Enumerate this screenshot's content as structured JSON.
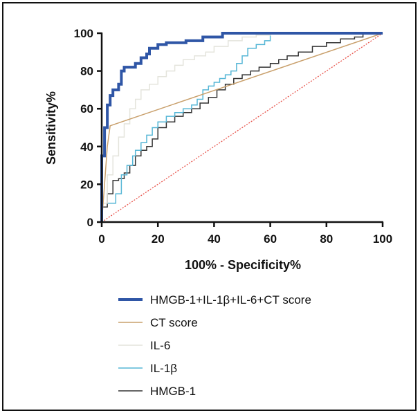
{
  "chart_data": {
    "type": "line",
    "title": "",
    "xlabel": "100% - Specificity%",
    "ylabel": "Sensitivity%",
    "xlim": [
      0,
      100
    ],
    "ylim": [
      0,
      100
    ],
    "xticks": [
      "0",
      "20",
      "40",
      "60",
      "80",
      "100"
    ],
    "yticks": [
      "0",
      "20",
      "40",
      "60",
      "80",
      "100"
    ],
    "grid": false,
    "legend_position": "bottom",
    "reference_line": {
      "x": [
        0,
        100
      ],
      "y": [
        0,
        100
      ],
      "color": "#e8534b",
      "style": "dotted"
    },
    "series": [
      {
        "name": "HMGB-1+IL-1β+IL-6+CT score",
        "color": "#2f56a6",
        "x": [
          0,
          0,
          1,
          1,
          2,
          2,
          3,
          3,
          4,
          4,
          5,
          6,
          7,
          7,
          8,
          9,
          10,
          12,
          14,
          15,
          16,
          17,
          17,
          20,
          23,
          27,
          30,
          36,
          38,
          43,
          54,
          60,
          80,
          100
        ],
        "y": [
          0,
          28,
          35,
          46,
          50,
          61,
          62,
          66,
          67,
          70,
          70,
          70,
          73,
          76,
          80,
          82,
          82,
          82,
          84,
          87,
          87,
          89,
          92,
          92,
          94,
          95,
          95,
          96,
          98,
          98,
          100,
          100,
          100,
          100
        ]
      },
      {
        "name": "CT score",
        "color": "#c9a06c",
        "x": [
          0,
          1,
          2,
          3,
          100
        ],
        "y": [
          0,
          20,
          40,
          51,
          100
        ]
      },
      {
        "name": "IL-6",
        "color": "#e4e4dc",
        "x": [
          0,
          2,
          4,
          6,
          8,
          10,
          12,
          14,
          17,
          20,
          23,
          26,
          29,
          33,
          37,
          40,
          45,
          50,
          55,
          60,
          63,
          100
        ],
        "y": [
          0,
          10,
          25,
          35,
          45,
          52,
          60,
          65,
          70,
          73,
          77,
          80,
          83,
          86,
          88,
          90,
          93,
          96,
          98,
          99,
          100,
          100
        ]
      },
      {
        "name": "IL-1β",
        "color": "#55b6d6",
        "x": [
          0,
          5,
          7,
          9,
          11,
          12,
          14,
          16,
          18,
          20,
          23,
          26,
          29,
          32,
          34,
          36,
          38,
          40,
          42,
          44,
          46,
          48,
          50,
          52,
          55,
          58,
          60,
          63,
          100
        ],
        "y": [
          0,
          10,
          15,
          25,
          30,
          35,
          38,
          42,
          46,
          50,
          53,
          56,
          58,
          60,
          62,
          65,
          70,
          72,
          74,
          76,
          78,
          80,
          84,
          88,
          92,
          94,
          96,
          100,
          100
        ]
      },
      {
        "name": "HMGB-1",
        "color": "#333333",
        "x": [
          0,
          2,
          4,
          6,
          8,
          10,
          12,
          14,
          16,
          18,
          20,
          23,
          26,
          29,
          32,
          35,
          38,
          41,
          44,
          47,
          50,
          53,
          56,
          60,
          63,
          66,
          70,
          75,
          80,
          85,
          90,
          93,
          100
        ],
        "y": [
          0,
          8,
          15,
          22,
          23,
          26,
          30,
          35,
          38,
          40,
          44,
          50,
          53,
          56,
          58,
          60,
          63,
          66,
          70,
          73,
          76,
          78,
          80,
          82,
          84,
          86,
          88,
          90,
          93,
          95,
          97,
          98,
          100
        ]
      }
    ]
  }
}
